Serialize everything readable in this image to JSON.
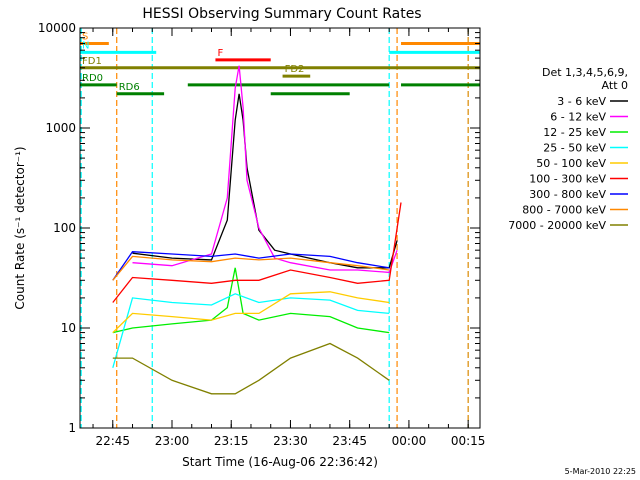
{
  "chart_data": {
    "type": "line",
    "title": "HESSI Observing Summary Count Rates",
    "xlabel": "Start Time (16-Aug-06 22:36:42)",
    "ylabel": "Count Rate (s⁻¹ detector⁻¹)",
    "y_scale": "log",
    "ylim": [
      1,
      10000
    ],
    "xlim": [
      "22:36:42",
      "00:18:00"
    ],
    "x_ticks": [
      "22:45",
      "23:00",
      "23:15",
      "23:30",
      "23:45",
      "00:00",
      "00:15"
    ],
    "y_ticks": [
      "1",
      "10",
      "100",
      "1000",
      "10000"
    ],
    "legend_position": "right",
    "legend_header": [
      "Det 1,3,4,5,6,9,",
      "Att 0"
    ],
    "series": [
      {
        "name": "3 - 6 keV",
        "color": "#000000",
        "x": [
          "22:50",
          "23:00",
          "23:10",
          "23:14",
          "23:16",
          "23:17",
          "23:18",
          "23:19",
          "23:22",
          "23:26",
          "23:30",
          "23:40",
          "23:47",
          "23:55",
          "23:57"
        ],
        "y": [
          56,
          50,
          48,
          120,
          1200,
          2200,
          1200,
          400,
          95,
          60,
          55,
          45,
          40,
          40,
          75
        ]
      },
      {
        "name": "6 - 12 keV",
        "color": "#ff00ff",
        "x": [
          "22:50",
          "23:00",
          "23:10",
          "23:14",
          "23:16",
          "23:17",
          "23:18",
          "23:19",
          "23:22",
          "23:26",
          "23:30",
          "23:40",
          "23:47",
          "23:55",
          "23:57"
        ],
        "y": [
          45,
          42,
          55,
          200,
          2500,
          4200,
          1600,
          300,
          100,
          50,
          45,
          38,
          38,
          36,
          60
        ]
      },
      {
        "name": "12 - 25 keV",
        "color": "#00ee00",
        "x": [
          "22:45",
          "22:50",
          "23:00",
          "23:10",
          "23:14",
          "23:16",
          "23:18",
          "23:22",
          "23:30",
          "23:40",
          "23:47",
          "23:55"
        ],
        "y": [
          9,
          10,
          11,
          12,
          16,
          40,
          14,
          12,
          14,
          13,
          10,
          9
        ]
      },
      {
        "name": "25 - 50 keV",
        "color": "#00ffff",
        "x": [
          "22:45",
          "22:50",
          "23:00",
          "23:10",
          "23:16",
          "23:22",
          "23:30",
          "23:40",
          "23:47",
          "23:55"
        ],
        "y": [
          4,
          20,
          18,
          17,
          22,
          18,
          20,
          19,
          15,
          14
        ]
      },
      {
        "name": "50 - 100 keV",
        "color": "#ffcc00",
        "x": [
          "22:45",
          "22:50",
          "23:00",
          "23:10",
          "23:16",
          "23:22",
          "23:30",
          "23:40",
          "23:47",
          "23:55"
        ],
        "y": [
          9,
          14,
          13,
          12,
          14,
          14,
          22,
          23,
          20,
          18
        ]
      },
      {
        "name": "100 - 300 keV",
        "color": "#ff0000",
        "x": [
          "22:45",
          "22:50",
          "23:00",
          "23:10",
          "23:16",
          "23:22",
          "23:30",
          "23:40",
          "23:47",
          "23:55",
          "23:58"
        ],
        "y": [
          18,
          32,
          30,
          28,
          30,
          30,
          38,
          32,
          28,
          30,
          180
        ]
      },
      {
        "name": "300 - 800 keV",
        "color": "#0000ff",
        "x": [
          "22:45",
          "22:50",
          "23:00",
          "23:10",
          "23:16",
          "23:22",
          "23:30",
          "23:40",
          "23:47",
          "23:55"
        ],
        "y": [
          30,
          58,
          55,
          52,
          55,
          50,
          55,
          52,
          45,
          40
        ]
      },
      {
        "name": "800 - 7000 keV",
        "color": "#ff8800",
        "x": [
          "22:45",
          "22:50",
          "23:00",
          "23:10",
          "23:16",
          "23:22",
          "23:30",
          "23:40",
          "23:47",
          "23:55"
        ],
        "y": [
          30,
          52,
          48,
          46,
          50,
          48,
          50,
          45,
          42,
          38
        ]
      },
      {
        "name": "7000 - 20000 keV",
        "color": "#808000",
        "x": [
          "22:45",
          "22:50",
          "23:00",
          "23:10",
          "23:16",
          "23:22",
          "23:30",
          "23:40",
          "23:47",
          "23:55"
        ],
        "y": [
          5,
          5,
          3,
          2.2,
          2.2,
          3,
          5,
          7,
          5,
          3
        ]
      }
    ],
    "flags": [
      {
        "label": "S",
        "color": "#ff8800",
        "level": 7000,
        "segments": [
          [
            "22:36:42",
            "22:44"
          ],
          [
            "23:58",
            "00:18"
          ]
        ]
      },
      {
        "label": "N",
        "color": "#00ffff",
        "level": 5700,
        "segments": [
          [
            "22:36:42",
            "22:56"
          ],
          [
            "23:55",
            "00:18"
          ]
        ]
      },
      {
        "label": "F",
        "color": "#ff0000",
        "level": 4800,
        "segments": [
          [
            "23:11",
            "23:25"
          ]
        ]
      },
      {
        "label": "FD1",
        "color": "#808000",
        "level": 4000,
        "segments": [
          [
            "22:36:42",
            "00:18"
          ]
        ]
      },
      {
        "label": "FD2",
        "color": "#808000",
        "level": 3300,
        "segments": [
          [
            "23:28",
            "23:35"
          ]
        ]
      },
      {
        "label": "RD0",
        "color": "#008000",
        "level": 2700,
        "segments": [
          [
            "22:36:42",
            "22:46"
          ],
          [
            "23:04",
            "23:55"
          ],
          [
            "23:58",
            "00:18"
          ]
        ]
      },
      {
        "label": "RD6",
        "color": "#008000",
        "level": 2200,
        "segments": [
          [
            "22:46",
            "22:58"
          ],
          [
            "23:25",
            "23:45"
          ]
        ]
      }
    ],
    "markers": [
      {
        "x": "22:37",
        "color": "#00ffff"
      },
      {
        "x": "22:46",
        "color": "#ff8800"
      },
      {
        "x": "22:55",
        "color": "#00ffff"
      },
      {
        "x": "23:55",
        "color": "#00ffff"
      },
      {
        "x": "23:57",
        "color": "#ff8800"
      },
      {
        "x": "00:15",
        "color": "#00ffff"
      },
      {
        "x": "00:15",
        "color": "#ff8800"
      }
    ],
    "footer": "5-Mar-2010 22:25"
  }
}
